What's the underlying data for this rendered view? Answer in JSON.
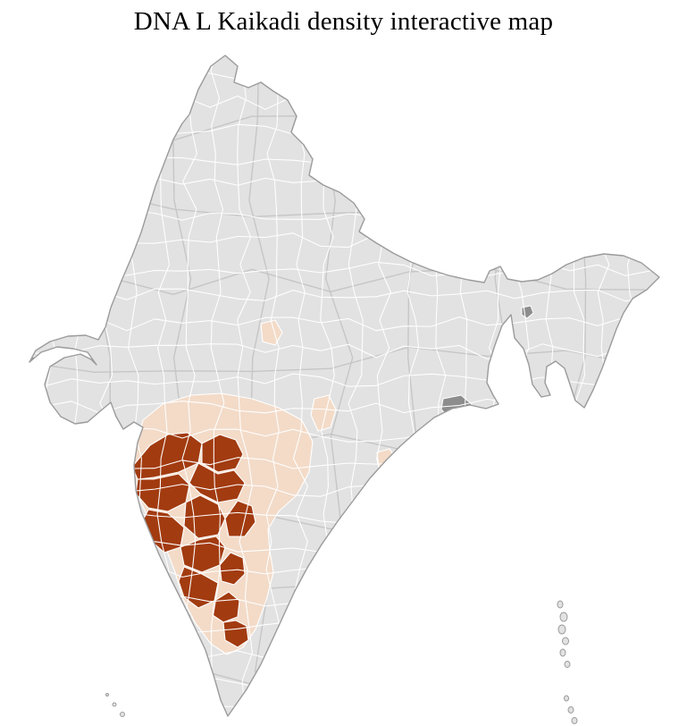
{
  "title": "DNA L Kaikadi density interactive map",
  "map": {
    "colors": {
      "background": "#ffffff",
      "land": "#e2e2e2",
      "district_border": "#ffffff",
      "state_border": "#c6c6c6",
      "outline": "#9b9b9b",
      "density_high": "#a23b10",
      "density_low": "#f3dbc8",
      "no_data": "#8d8d8d"
    },
    "density_classes": [
      {
        "label": "high-density-districts",
        "color": "#a23b10"
      },
      {
        "label": "low-density-districts",
        "color": "#f3dbc8"
      },
      {
        "label": "dark-gray-districts",
        "color": "#8d8d8d"
      },
      {
        "label": "base-districts",
        "color": "#e2e2e2"
      }
    ]
  }
}
